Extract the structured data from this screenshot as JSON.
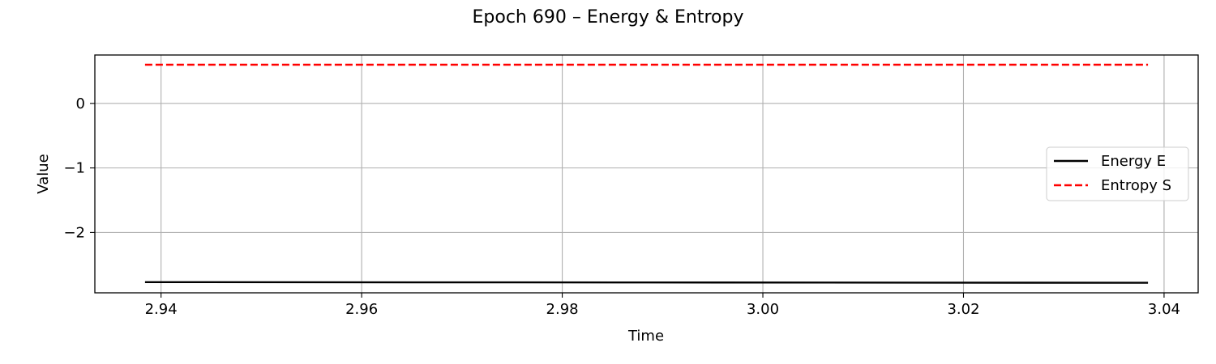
{
  "chart_data": {
    "type": "line",
    "title": "Epoch 690 – Energy & Entropy",
    "xlabel": "Time",
    "ylabel": "Value",
    "xlim": [
      2.9334,
      3.0434
    ],
    "ylim": [
      -2.935,
      0.75
    ],
    "x_ticks": [
      2.94,
      2.96,
      2.98,
      3.0,
      3.02,
      3.04
    ],
    "x_tick_labels": [
      "2.94",
      "2.96",
      "2.98",
      "3.00",
      "3.02",
      "3.04"
    ],
    "y_ticks": [
      0,
      -1,
      -2
    ],
    "y_tick_labels": [
      "0",
      "−1",
      "−2"
    ],
    "grid": true,
    "legend_position": "center-right",
    "series": [
      {
        "name": "Energy E",
        "color": "#000000",
        "style": "solid",
        "x": [
          2.9384,
          2.9884,
          3.0384
        ],
        "y": [
          -2.77,
          -2.775,
          -2.78
        ]
      },
      {
        "name": "Entropy S",
        "color": "#ff0000",
        "style": "dashed",
        "x": [
          2.9384,
          2.9884,
          3.0384
        ],
        "y": [
          0.6,
          0.6,
          0.6
        ]
      }
    ]
  }
}
